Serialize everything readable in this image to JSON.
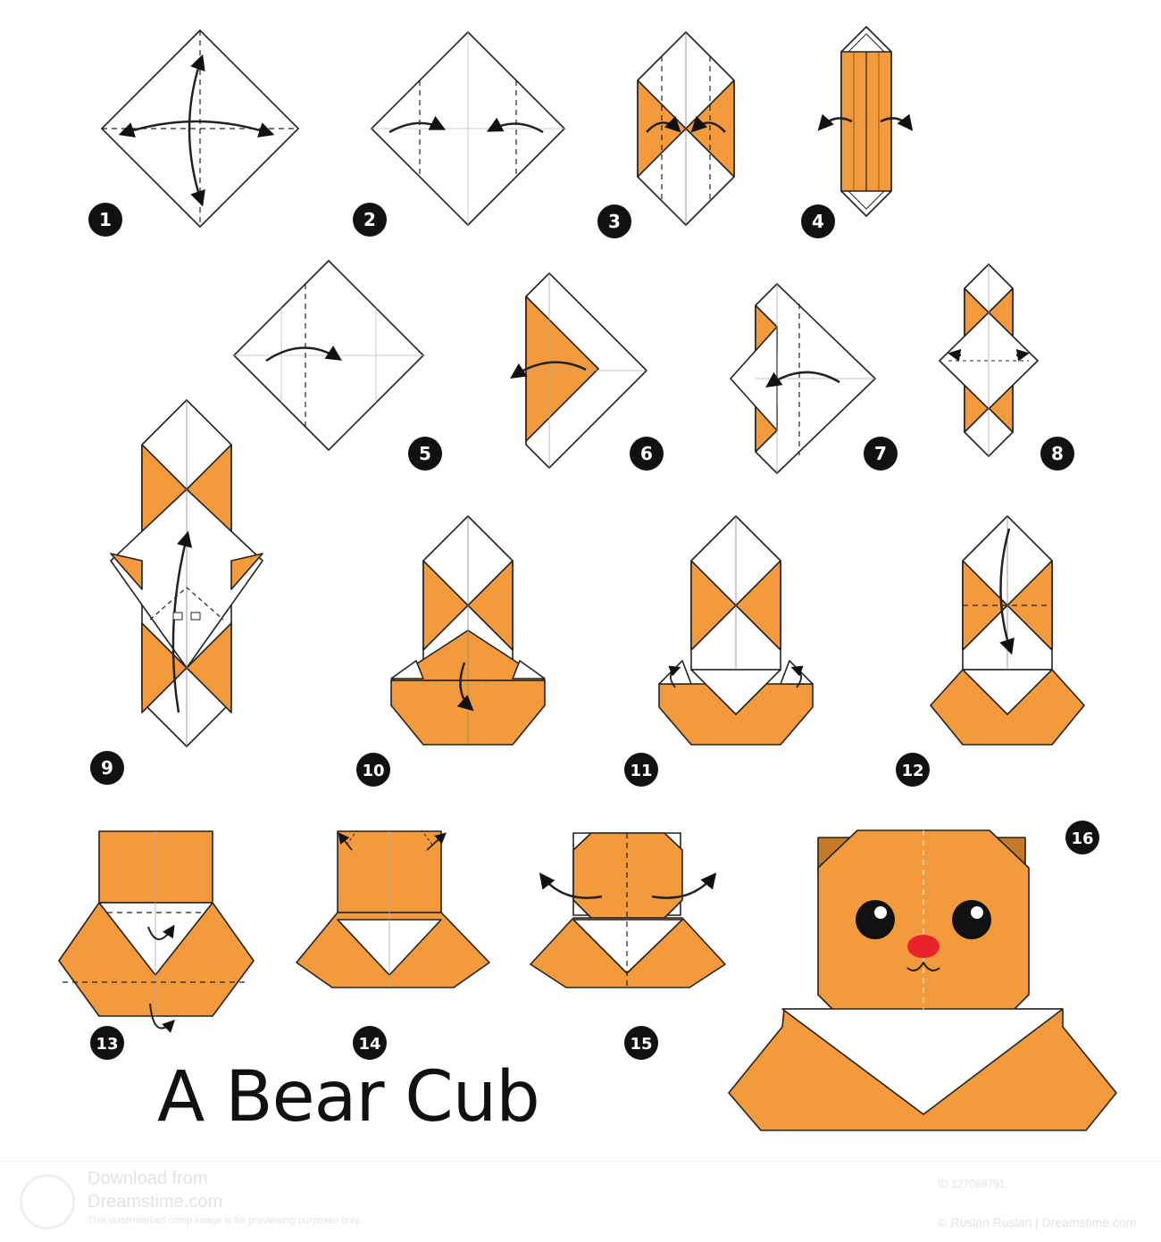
{
  "title": "A Bear Cub",
  "colors": {
    "paper_orange": "#f39a3c",
    "paper_white": "#ffffff",
    "outline": "#222222",
    "nose": "#e8232b"
  },
  "steps": [
    {
      "n": "1"
    },
    {
      "n": "2"
    },
    {
      "n": "3"
    },
    {
      "n": "4"
    },
    {
      "n": "5"
    },
    {
      "n": "6"
    },
    {
      "n": "7"
    },
    {
      "n": "8"
    },
    {
      "n": "9"
    },
    {
      "n": "10"
    },
    {
      "n": "11"
    },
    {
      "n": "12"
    },
    {
      "n": "13"
    },
    {
      "n": "14"
    },
    {
      "n": "15"
    },
    {
      "n": "16"
    }
  ],
  "watermark": {
    "line1": "Download from",
    "line2": "Dreamstime.com",
    "line3": "This watermarked comp image is for previewing purposes only.",
    "id": "ID 127088791",
    "credit": "© Ruslan Ruslan | Dreamstime.com"
  }
}
